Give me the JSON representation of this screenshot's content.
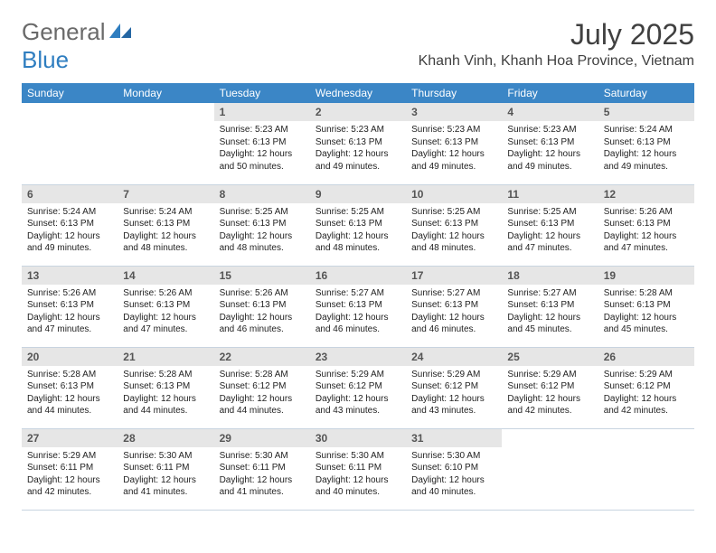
{
  "logo": {
    "general": "General",
    "blue": "Blue"
  },
  "title": "July 2025",
  "location": "Khanh Vinh, Khanh Hoa Province, Vietnam",
  "colors": {
    "header_bg": "#3b86c6",
    "header_fg": "#ffffff",
    "daynum_bg": "#e6e6e6",
    "daynum_fg": "#555555",
    "border": "#c8d4e0",
    "title_color": "#404040",
    "logo_gray": "#6a6a6a",
    "logo_blue": "#2f7ec0"
  },
  "dayHeaders": [
    "Sunday",
    "Monday",
    "Tuesday",
    "Wednesday",
    "Thursday",
    "Friday",
    "Saturday"
  ],
  "weeks": [
    [
      {
        "empty": true
      },
      {
        "empty": true
      },
      {
        "num": "1",
        "sunrise": "5:23 AM",
        "sunset": "6:13 PM",
        "daylight": "12 hours and 50 minutes."
      },
      {
        "num": "2",
        "sunrise": "5:23 AM",
        "sunset": "6:13 PM",
        "daylight": "12 hours and 49 minutes."
      },
      {
        "num": "3",
        "sunrise": "5:23 AM",
        "sunset": "6:13 PM",
        "daylight": "12 hours and 49 minutes."
      },
      {
        "num": "4",
        "sunrise": "5:23 AM",
        "sunset": "6:13 PM",
        "daylight": "12 hours and 49 minutes."
      },
      {
        "num": "5",
        "sunrise": "5:24 AM",
        "sunset": "6:13 PM",
        "daylight": "12 hours and 49 minutes."
      }
    ],
    [
      {
        "num": "6",
        "sunrise": "5:24 AM",
        "sunset": "6:13 PM",
        "daylight": "12 hours and 49 minutes."
      },
      {
        "num": "7",
        "sunrise": "5:24 AM",
        "sunset": "6:13 PM",
        "daylight": "12 hours and 48 minutes."
      },
      {
        "num": "8",
        "sunrise": "5:25 AM",
        "sunset": "6:13 PM",
        "daylight": "12 hours and 48 minutes."
      },
      {
        "num": "9",
        "sunrise": "5:25 AM",
        "sunset": "6:13 PM",
        "daylight": "12 hours and 48 minutes."
      },
      {
        "num": "10",
        "sunrise": "5:25 AM",
        "sunset": "6:13 PM",
        "daylight": "12 hours and 48 minutes."
      },
      {
        "num": "11",
        "sunrise": "5:25 AM",
        "sunset": "6:13 PM",
        "daylight": "12 hours and 47 minutes."
      },
      {
        "num": "12",
        "sunrise": "5:26 AM",
        "sunset": "6:13 PM",
        "daylight": "12 hours and 47 minutes."
      }
    ],
    [
      {
        "num": "13",
        "sunrise": "5:26 AM",
        "sunset": "6:13 PM",
        "daylight": "12 hours and 47 minutes."
      },
      {
        "num": "14",
        "sunrise": "5:26 AM",
        "sunset": "6:13 PM",
        "daylight": "12 hours and 47 minutes."
      },
      {
        "num": "15",
        "sunrise": "5:26 AM",
        "sunset": "6:13 PM",
        "daylight": "12 hours and 46 minutes."
      },
      {
        "num": "16",
        "sunrise": "5:27 AM",
        "sunset": "6:13 PM",
        "daylight": "12 hours and 46 minutes."
      },
      {
        "num": "17",
        "sunrise": "5:27 AM",
        "sunset": "6:13 PM",
        "daylight": "12 hours and 46 minutes."
      },
      {
        "num": "18",
        "sunrise": "5:27 AM",
        "sunset": "6:13 PM",
        "daylight": "12 hours and 45 minutes."
      },
      {
        "num": "19",
        "sunrise": "5:28 AM",
        "sunset": "6:13 PM",
        "daylight": "12 hours and 45 minutes."
      }
    ],
    [
      {
        "num": "20",
        "sunrise": "5:28 AM",
        "sunset": "6:13 PM",
        "daylight": "12 hours and 44 minutes."
      },
      {
        "num": "21",
        "sunrise": "5:28 AM",
        "sunset": "6:13 PM",
        "daylight": "12 hours and 44 minutes."
      },
      {
        "num": "22",
        "sunrise": "5:28 AM",
        "sunset": "6:12 PM",
        "daylight": "12 hours and 44 minutes."
      },
      {
        "num": "23",
        "sunrise": "5:29 AM",
        "sunset": "6:12 PM",
        "daylight": "12 hours and 43 minutes."
      },
      {
        "num": "24",
        "sunrise": "5:29 AM",
        "sunset": "6:12 PM",
        "daylight": "12 hours and 43 minutes."
      },
      {
        "num": "25",
        "sunrise": "5:29 AM",
        "sunset": "6:12 PM",
        "daylight": "12 hours and 42 minutes."
      },
      {
        "num": "26",
        "sunrise": "5:29 AM",
        "sunset": "6:12 PM",
        "daylight": "12 hours and 42 minutes."
      }
    ],
    [
      {
        "num": "27",
        "sunrise": "5:29 AM",
        "sunset": "6:11 PM",
        "daylight": "12 hours and 42 minutes."
      },
      {
        "num": "28",
        "sunrise": "5:30 AM",
        "sunset": "6:11 PM",
        "daylight": "12 hours and 41 minutes."
      },
      {
        "num": "29",
        "sunrise": "5:30 AM",
        "sunset": "6:11 PM",
        "daylight": "12 hours and 41 minutes."
      },
      {
        "num": "30",
        "sunrise": "5:30 AM",
        "sunset": "6:11 PM",
        "daylight": "12 hours and 40 minutes."
      },
      {
        "num": "31",
        "sunrise": "5:30 AM",
        "sunset": "6:10 PM",
        "daylight": "12 hours and 40 minutes."
      },
      {
        "empty": true
      },
      {
        "empty": true
      }
    ]
  ],
  "labels": {
    "sunrise": "Sunrise:",
    "sunset": "Sunset:",
    "daylight": "Daylight:"
  }
}
